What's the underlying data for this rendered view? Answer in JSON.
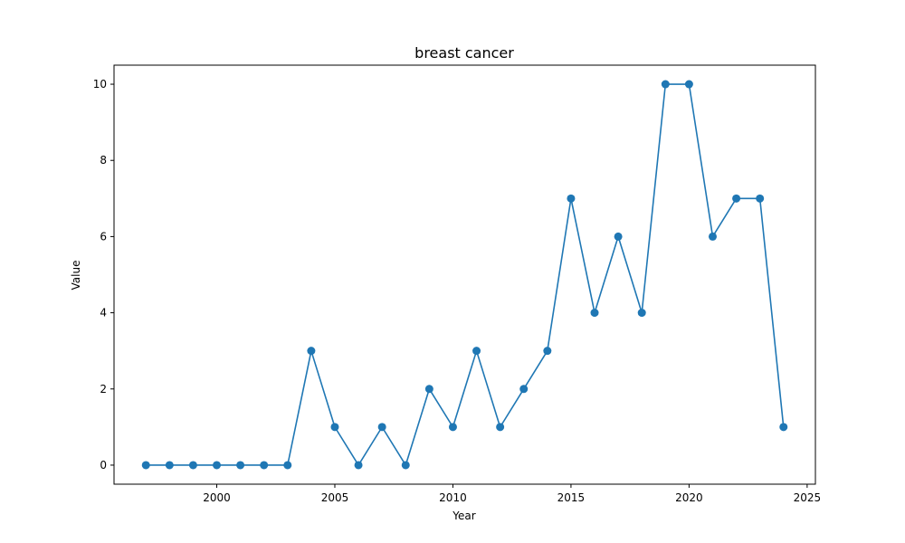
{
  "chart_data": {
    "type": "line",
    "title": "breast cancer",
    "xlabel": "Year",
    "ylabel": "Value",
    "x": [
      1997,
      1998,
      1999,
      2000,
      2001,
      2002,
      2003,
      2004,
      2005,
      2006,
      2007,
      2008,
      2009,
      2010,
      2011,
      2012,
      2013,
      2014,
      2015,
      2016,
      2017,
      2018,
      2019,
      2020,
      2021,
      2022,
      2023,
      2024
    ],
    "series": [
      {
        "values": [
          0,
          0,
          0,
          0,
          0,
          0,
          0,
          3,
          1,
          0,
          1,
          0,
          2,
          1,
          3,
          1,
          2,
          3,
          7,
          4,
          6,
          4,
          10,
          10,
          6,
          7,
          7,
          1
        ],
        "color": "#1f77b4",
        "marker": "circle"
      }
    ],
    "xlim": [
      1995.65,
      2025.35
    ],
    "ylim": [
      -0.5,
      10.5
    ],
    "xticks": [
      2000,
      2005,
      2010,
      2015,
      2020,
      2025
    ],
    "yticks": [
      0,
      2,
      4,
      6,
      8,
      10
    ],
    "grid": false,
    "legend": "none"
  }
}
